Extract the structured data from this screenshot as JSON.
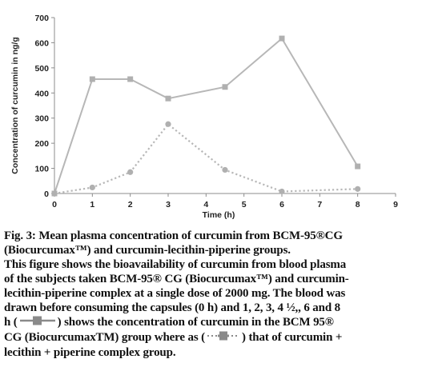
{
  "chart_data": {
    "type": "line",
    "title": "",
    "xlabel": "Time (h)",
    "ylabel": "Concentration of curcumin in ng/g",
    "xlim": [
      0,
      9
    ],
    "ylim": [
      0,
      700
    ],
    "x_ticks": [
      "0",
      "1",
      "2",
      "3",
      "4",
      "5",
      "6",
      "7",
      "8",
      "9"
    ],
    "y_ticks": [
      "0",
      "100",
      "200",
      "300",
      "400",
      "500",
      "600",
      "700"
    ],
    "grid": false,
    "legend": "none",
    "series": [
      {
        "style": "solid",
        "marker": "square",
        "color": "#b7b7b7",
        "x": [
          0,
          1,
          2,
          3,
          4.5,
          6,
          8
        ],
        "y": [
          0,
          455,
          455,
          378,
          424,
          617,
          108
        ]
      },
      {
        "style": "dotted",
        "marker": "circle",
        "color": "#b7b7b7",
        "x": [
          0,
          1,
          2,
          3,
          4.5,
          6,
          8
        ],
        "y": [
          0,
          24,
          85,
          276,
          94,
          8,
          18
        ]
      }
    ]
  },
  "caption": {
    "line1": "Fig. 3: Mean plasma concentration of curcumin from BCM-95®CG",
    "line2": "(Biocurcumax™) and curcumin-lecithin-piperine groups.",
    "line3": "This figure shows the bioavailability of curcumin from blood plasma",
    "line4": "of the subjects taken BCM-95® CG (Biocurcumax™) and curcumin-",
    "line5": "lecithin-piperine complex at a single dose of 2000 mg. The blood was",
    "line6": "drawn before consuming the capsules (0 h) and 1, 2, 3, 4 ½,, 6 and 8",
    "line7_pre": "h (",
    "line7_post": ") shows the concentration of curcumin in the BCM 95®",
    "line8_pre": "CG (BiocurcumaxTM) group where as (",
    "line8_post": ") that of curcumin +",
    "line9": "lecithin + piperine complex group."
  }
}
